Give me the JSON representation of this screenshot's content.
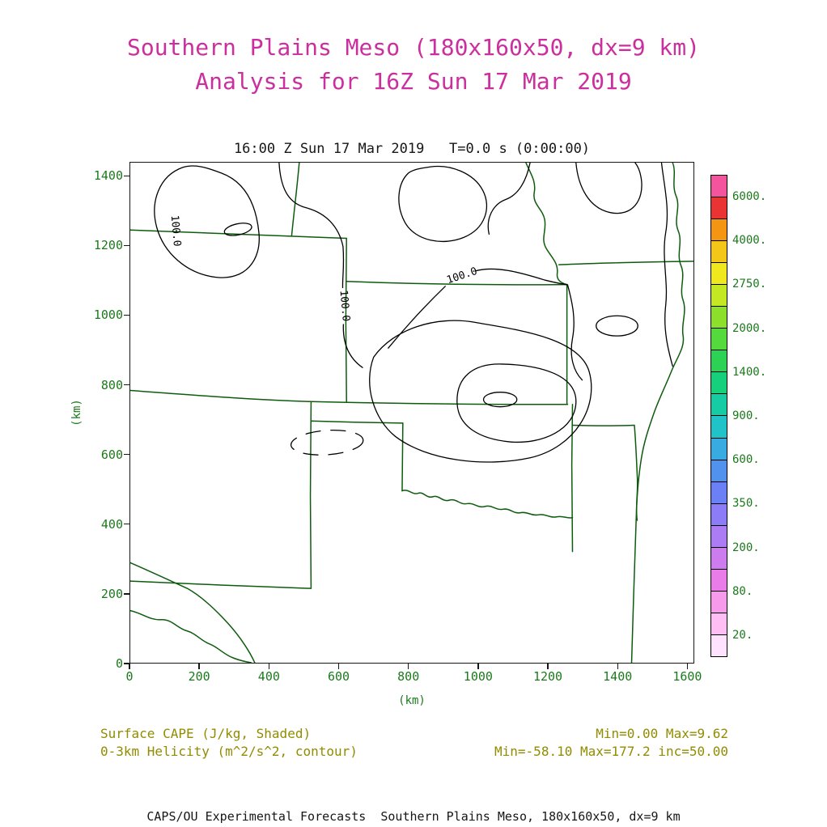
{
  "title": {
    "line1": "Southern Plains Meso (180x160x50, dx=9 km)",
    "line2": "Analysis for 16Z Sun 17 Mar 2019"
  },
  "plot": {
    "header": "16:00 Z Sun 17 Mar 2019   T=0.0 s (0:00:00)",
    "x_axis": {
      "label": "(km)",
      "ticks": [
        "0",
        "200",
        "400",
        "600",
        "800",
        "1000",
        "1200",
        "1400",
        "1600"
      ]
    },
    "y_axis": {
      "label": "(km)",
      "ticks": [
        "0",
        "200",
        "400",
        "600",
        "800",
        "1000",
        "1200",
        "1400"
      ]
    },
    "contour_labels": [
      "100.0",
      "100.0",
      "100.0"
    ]
  },
  "colorbar": {
    "tick_labels": [
      "6000.",
      "4000.",
      "2750.",
      "2000.",
      "1400.",
      "900.",
      "600.",
      "350.",
      "200.",
      "80.",
      "20."
    ],
    "colors_bottom_to_top": [
      "#ffe2ff",
      "#ffbef4",
      "#f79aec",
      "#ea7cea",
      "#cc7cee",
      "#ac7cf4",
      "#8c7cf8",
      "#6c80f6",
      "#5092ee",
      "#38ace0",
      "#20c4c8",
      "#16cca4",
      "#16d07c",
      "#2cd254",
      "#54da3c",
      "#8ce02c",
      "#c4e822",
      "#eee81c",
      "#f4c618",
      "#f49614",
      "#ea3434",
      "#f4549e"
    ]
  },
  "legend": {
    "line1": "Surface CAPE (J/kg, Shaded)",
    "line2": "0-3km Helicity (m^2/s^2, contour)"
  },
  "stats": {
    "line1": "Min=0.00 Max=9.62",
    "line2": "Min=-58.10 Max=177.2 inc=50.00"
  },
  "footer": "CAPS/OU Experimental Forecasts  Southern Plains Meso, 180x160x50, dx=9 km",
  "colors": {
    "title": "#cb2f9e",
    "axis_text": "#1b7a1b",
    "state_borders": "#0d5c0d",
    "contours": "#000000",
    "legend_text": "#918c00"
  },
  "chart_data": {
    "type": "heatmap",
    "title": "Southern Plains Meso (180x160x50, dx=9 km) Analysis for 16Z Sun 17 Mar 2019",
    "valid_time": "16:00 Z Sun 17 Mar 2019",
    "forecast_time": "T=0.0 s (0:00:00)",
    "xlabel": "(km)",
    "ylabel": "(km)",
    "xlim": [
      0,
      1620
    ],
    "ylim": [
      0,
      1440
    ],
    "x_ticks": [
      0,
      200,
      400,
      600,
      800,
      1000,
      1200,
      1400,
      1600
    ],
    "y_ticks": [
      0,
      200,
      400,
      600,
      800,
      1000,
      1200,
      1400
    ],
    "grid": false,
    "legend_position": "right-colorbar",
    "shaded_field": {
      "name": "Surface CAPE",
      "units": "J/kg",
      "min": 0.0,
      "max": 9.62
    },
    "contour_field": {
      "name": "0-3km Helicity",
      "units": "m^2/s^2",
      "min": -58.1,
      "max": 177.2,
      "interval": 50.0,
      "labeled_value": 100.0,
      "negative_contours": "dashed"
    },
    "colorbar_levels": [
      20,
      80,
      200,
      350,
      600,
      900,
      1400,
      2000,
      2750,
      4000,
      6000
    ],
    "basemap": "US state borders: CO, NM, TX, OK, KS, NE, MO, IA, AR with rivers"
  }
}
